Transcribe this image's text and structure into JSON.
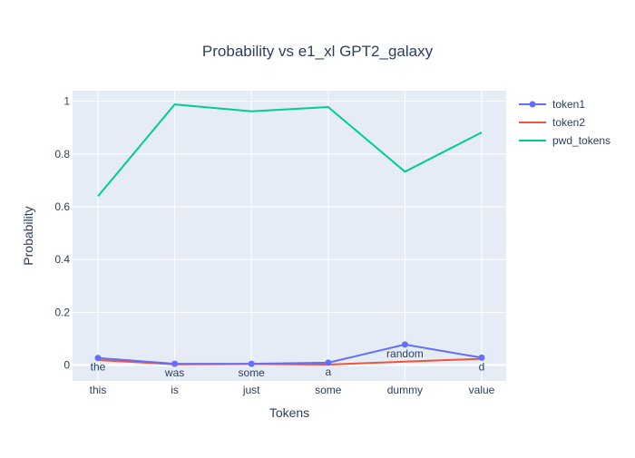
{
  "chart_data": {
    "type": "line",
    "title": "Probability vs e1_xl GPT2_galaxy",
    "xlabel": "Tokens",
    "ylabel": "Probability",
    "categories": [
      "this",
      "is",
      "just",
      "some",
      "dummy",
      "value"
    ],
    "ylim": [
      -0.06,
      1.04
    ],
    "yticks": [
      0,
      0.2,
      0.4,
      0.6,
      0.8,
      1
    ],
    "ytick_labels": [
      "0",
      "0.2",
      "0.4",
      "0.6",
      "0.8",
      "1"
    ],
    "grid": true,
    "legend_position": "top-right",
    "plot_bgcolor": "#E5ECF6",
    "series": [
      {
        "name": "token1",
        "color": "#636EFA",
        "mode": "lines+markers+text",
        "values": [
          0.027,
          0.005,
          0.005,
          0.009,
          0.078,
          0.028
        ],
        "text_labels": [
          "the",
          "was",
          "some",
          "a",
          "random",
          "d"
        ]
      },
      {
        "name": "token2",
        "color": "#EF553B",
        "mode": "lines",
        "values": [
          0.019,
          0.003,
          0.004,
          0.002,
          0.013,
          0.024
        ]
      },
      {
        "name": "pwd_tokens",
        "color": "#00CC96",
        "mode": "lines",
        "values": [
          0.64,
          0.988,
          0.962,
          0.978,
          0.733,
          0.882
        ]
      }
    ]
  }
}
